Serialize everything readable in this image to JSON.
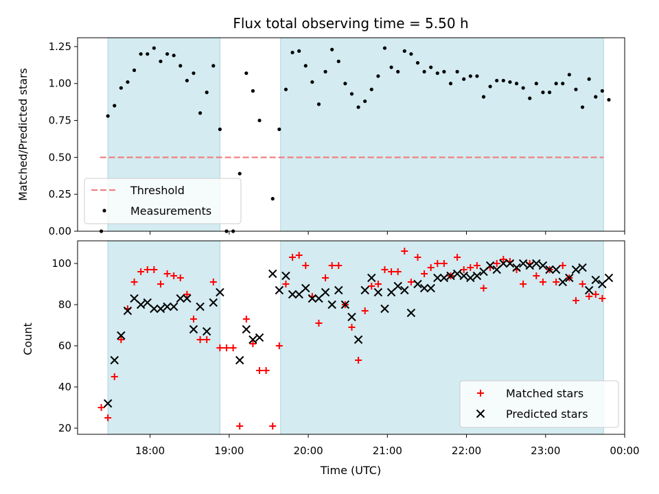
{
  "chart_data": [
    {
      "type": "scatter",
      "title": "Flux total observing time = 5.50 h",
      "ylabel": "Matched/Predicted stars",
      "xlabel": "",
      "ylim": [
        0,
        1.31
      ],
      "yticks": [
        0.0,
        0.25,
        0.5,
        0.75,
        1.0,
        1.25
      ],
      "ytick_labels": [
        "0.00",
        "0.25",
        "0.50",
        "0.75",
        "1.00",
        "1.25"
      ],
      "shaded_intervals": [
        [
          "17:28",
          "18:53"
        ],
        [
          "19:39",
          "23:44"
        ]
      ],
      "shade_color": "#d3ebf1",
      "legend": {
        "placement": "lower-left",
        "entries": [
          {
            "label": "Threshold",
            "color": "#f08080",
            "marker": "dashed-line"
          },
          {
            "label": "Measurements",
            "color": "#000000",
            "marker": "dot"
          }
        ]
      },
      "threshold": {
        "name": "Threshold",
        "y": 0.5,
        "x_range": [
          "17:22",
          "23:44"
        ],
        "color": "#f08080"
      },
      "series": [
        {
          "name": "Measurements",
          "color": "#000000",
          "points": [
            [
              "17:23",
              0.0
            ],
            [
              "17:28",
              0.78
            ],
            [
              "17:33",
              0.85
            ],
            [
              "17:38",
              0.97
            ],
            [
              "17:43",
              1.01
            ],
            [
              "17:48",
              1.09
            ],
            [
              "17:53",
              1.2
            ],
            [
              "17:58",
              1.2
            ],
            [
              "18:03",
              1.24
            ],
            [
              "18:08",
              1.15
            ],
            [
              "18:13",
              1.2
            ],
            [
              "18:18",
              1.19
            ],
            [
              "18:23",
              1.12
            ],
            [
              "18:28",
              1.02
            ],
            [
              "18:33",
              1.07
            ],
            [
              "18:38",
              0.8
            ],
            [
              "18:43",
              0.94
            ],
            [
              "18:48",
              1.12
            ],
            [
              "18:53",
              0.69
            ],
            [
              "18:58",
              0.0
            ],
            [
              "19:03",
              0.0
            ],
            [
              "19:08",
              0.39
            ],
            [
              "19:13",
              1.07
            ],
            [
              "19:18",
              0.95
            ],
            [
              "19:23",
              0.75
            ],
            [
              "19:33",
              0.22
            ],
            [
              "19:38",
              0.69
            ],
            [
              "19:43",
              0.96
            ],
            [
              "19:48",
              1.21
            ],
            [
              "19:53",
              1.22
            ],
            [
              "19:58",
              1.12
            ],
            [
              "20:03",
              1.01
            ],
            [
              "20:08",
              0.86
            ],
            [
              "20:13",
              1.08
            ],
            [
              "20:18",
              1.23
            ],
            [
              "20:23",
              1.15
            ],
            [
              "20:28",
              1.0
            ],
            [
              "20:33",
              0.93
            ],
            [
              "20:38",
              0.84
            ],
            [
              "20:43",
              0.88
            ],
            [
              "20:48",
              0.96
            ],
            [
              "20:53",
              1.05
            ],
            [
              "20:58",
              1.24
            ],
            [
              "21:03",
              1.11
            ],
            [
              "21:08",
              1.08
            ],
            [
              "21:13",
              1.22
            ],
            [
              "21:18",
              1.2
            ],
            [
              "21:23",
              1.14
            ],
            [
              "21:28",
              1.08
            ],
            [
              "21:33",
              1.11
            ],
            [
              "21:38",
              1.07
            ],
            [
              "21:43",
              1.08
            ],
            [
              "21:48",
              1.0
            ],
            [
              "21:53",
              1.08
            ],
            [
              "21:58",
              1.03
            ],
            [
              "22:03",
              1.05
            ],
            [
              "22:08",
              1.05
            ],
            [
              "22:13",
              0.91
            ],
            [
              "22:18",
              0.98
            ],
            [
              "22:23",
              1.02
            ],
            [
              "22:28",
              1.02
            ],
            [
              "22:33",
              1.01
            ],
            [
              "22:38",
              1.0
            ],
            [
              "22:43",
              0.97
            ],
            [
              "22:48",
              0.9
            ],
            [
              "22:53",
              1.0
            ],
            [
              "22:58",
              0.94
            ],
            [
              "23:03",
              0.94
            ],
            [
              "23:08",
              1.0
            ],
            [
              "23:13",
              1.0
            ],
            [
              "23:18",
              1.06
            ],
            [
              "23:23",
              0.96
            ],
            [
              "23:28",
              0.84
            ],
            [
              "23:33",
              1.03
            ],
            [
              "23:38",
              0.91
            ],
            [
              "23:43",
              0.95
            ],
            [
              "23:48",
              0.89
            ]
          ]
        }
      ]
    },
    {
      "type": "scatter",
      "title": "",
      "ylabel": "Count",
      "xlabel": "Time (UTC)",
      "ylim": [
        17,
        111
      ],
      "yticks": [
        20,
        40,
        60,
        80,
        100
      ],
      "ytick_labels": [
        "20",
        "40",
        "60",
        "80",
        "100"
      ],
      "xlim": [
        "17:05",
        "00:00"
      ],
      "xticks": [
        "18:00",
        "19:00",
        "20:00",
        "21:00",
        "22:00",
        "23:00",
        "00:00"
      ],
      "xtick_labels": [
        "18:00",
        "19:00",
        "20:00",
        "21:00",
        "22:00",
        "23:00",
        "00:00"
      ],
      "shaded_intervals": [
        [
          "17:28",
          "18:53"
        ],
        [
          "19:39",
          "23:44"
        ]
      ],
      "shade_color": "#d3ebf1",
      "legend": {
        "placement": "lower-right",
        "entries": [
          {
            "label": "Matched stars",
            "color": "#ff0000",
            "marker": "plus"
          },
          {
            "label": "Predicted stars",
            "color": "#000000",
            "marker": "x"
          }
        ]
      },
      "series": [
        {
          "name": "Matched stars",
          "color": "#ff0000",
          "marker": "plus",
          "points": [
            [
              "17:23",
              30
            ],
            [
              "17:28",
              25
            ],
            [
              "17:33",
              45
            ],
            [
              "17:38",
              63
            ],
            [
              "17:43",
              78
            ],
            [
              "17:48",
              91
            ],
            [
              "17:53",
              96
            ],
            [
              "17:58",
              97
            ],
            [
              "18:03",
              97
            ],
            [
              "18:08",
              90
            ],
            [
              "18:13",
              95
            ],
            [
              "18:18",
              94
            ],
            [
              "18:23",
              93
            ],
            [
              "18:28",
              85
            ],
            [
              "18:33",
              73
            ],
            [
              "18:38",
              63
            ],
            [
              "18:43",
              63
            ],
            [
              "18:48",
              91
            ],
            [
              "18:53",
              59
            ],
            [
              "18:58",
              59
            ],
            [
              "19:03",
              59
            ],
            [
              "19:08",
              21
            ],
            [
              "19:13",
              73
            ],
            [
              "19:18",
              61
            ],
            [
              "19:23",
              48
            ],
            [
              "19:28",
              48
            ],
            [
              "19:33",
              21
            ],
            [
              "19:38",
              60
            ],
            [
              "19:43",
              90
            ],
            [
              "19:48",
              103
            ],
            [
              "19:53",
              104
            ],
            [
              "19:58",
              99
            ],
            [
              "20:03",
              84
            ],
            [
              "20:08",
              71
            ],
            [
              "20:13",
              93
            ],
            [
              "20:18",
              99
            ],
            [
              "20:23",
              99
            ],
            [
              "20:28",
              80
            ],
            [
              "20:33",
              69
            ],
            [
              "20:38",
              53
            ],
            [
              "20:43",
              77
            ],
            [
              "20:48",
              89
            ],
            [
              "20:53",
              90
            ],
            [
              "20:58",
              97
            ],
            [
              "21:03",
              96
            ],
            [
              "21:08",
              96
            ],
            [
              "21:13",
              106
            ],
            [
              "21:18",
              91
            ],
            [
              "21:23",
              103
            ],
            [
              "21:28",
              95
            ],
            [
              "21:33",
              98
            ],
            [
              "21:38",
              100
            ],
            [
              "21:43",
              100
            ],
            [
              "21:48",
              94
            ],
            [
              "21:53",
              103
            ],
            [
              "21:58",
              97
            ],
            [
              "22:03",
              98
            ],
            [
              "22:08",
              99
            ],
            [
              "22:13",
              88
            ],
            [
              "22:18",
              98
            ],
            [
              "22:23",
              100
            ],
            [
              "22:28",
              102
            ],
            [
              "22:33",
              101
            ],
            [
              "22:38",
              97
            ],
            [
              "22:43",
              90
            ],
            [
              "22:48",
              100
            ],
            [
              "22:53",
              94
            ],
            [
              "22:58",
              91
            ],
            [
              "23:03",
              97
            ],
            [
              "23:08",
              91
            ],
            [
              "23:13",
              99
            ],
            [
              "23:18",
              93
            ],
            [
              "23:23",
              82
            ],
            [
              "23:28",
              90
            ],
            [
              "23:33",
              84
            ],
            [
              "23:38",
              85
            ],
            [
              "23:43",
              83
            ]
          ]
        },
        {
          "name": "Predicted stars",
          "color": "#000000",
          "marker": "x",
          "points": [
            [
              "17:28",
              32
            ],
            [
              "17:33",
              53
            ],
            [
              "17:38",
              65
            ],
            [
              "17:43",
              77
            ],
            [
              "17:48",
              83
            ],
            [
              "17:53",
              80
            ],
            [
              "17:58",
              81
            ],
            [
              "18:03",
              78
            ],
            [
              "18:08",
              78
            ],
            [
              "18:13",
              79
            ],
            [
              "18:18",
              79
            ],
            [
              "18:23",
              83
            ],
            [
              "18:28",
              83
            ],
            [
              "18:33",
              68
            ],
            [
              "18:38",
              79
            ],
            [
              "18:43",
              67
            ],
            [
              "18:48",
              81
            ],
            [
              "18:53",
              86
            ],
            [
              "19:08",
              53
            ],
            [
              "19:13",
              68
            ],
            [
              "19:18",
              63
            ],
            [
              "19:23",
              64
            ],
            [
              "19:33",
              95
            ],
            [
              "19:38",
              87
            ],
            [
              "19:43",
              94
            ],
            [
              "19:48",
              85
            ],
            [
              "19:53",
              85
            ],
            [
              "19:58",
              88
            ],
            [
              "20:03",
              83
            ],
            [
              "20:08",
              83
            ],
            [
              "20:13",
              86
            ],
            [
              "20:18",
              80
            ],
            [
              "20:23",
              87
            ],
            [
              "20:28",
              80
            ],
            [
              "20:33",
              74
            ],
            [
              "20:38",
              63
            ],
            [
              "20:43",
              87
            ],
            [
              "20:48",
              93
            ],
            [
              "20:53",
              86
            ],
            [
              "20:58",
              78
            ],
            [
              "21:03",
              86
            ],
            [
              "21:08",
              89
            ],
            [
              "21:13",
              87
            ],
            [
              "21:18",
              76
            ],
            [
              "21:23",
              90
            ],
            [
              "21:28",
              88
            ],
            [
              "21:33",
              88
            ],
            [
              "21:38",
              93
            ],
            [
              "21:43",
              93
            ],
            [
              "21:48",
              94
            ],
            [
              "21:53",
              95
            ],
            [
              "21:58",
              94
            ],
            [
              "22:03",
              93
            ],
            [
              "22:08",
              94
            ],
            [
              "22:13",
              96
            ],
            [
              "22:18",
              99
            ],
            [
              "22:23",
              97
            ],
            [
              "22:28",
              100
            ],
            [
              "22:33",
              100
            ],
            [
              "22:38",
              98
            ],
            [
              "22:43",
              100
            ],
            [
              "22:48",
              99
            ],
            [
              "22:53",
              100
            ],
            [
              "22:58",
              99
            ],
            [
              "23:03",
              97
            ],
            [
              "23:08",
              97
            ],
            [
              "23:13",
              91
            ],
            [
              "23:18",
              93
            ],
            [
              "23:23",
              97
            ],
            [
              "23:28",
              98
            ],
            [
              "23:33",
              87
            ],
            [
              "23:38",
              92
            ],
            [
              "23:43",
              90
            ],
            [
              "23:48",
              93
            ]
          ]
        }
      ]
    }
  ]
}
